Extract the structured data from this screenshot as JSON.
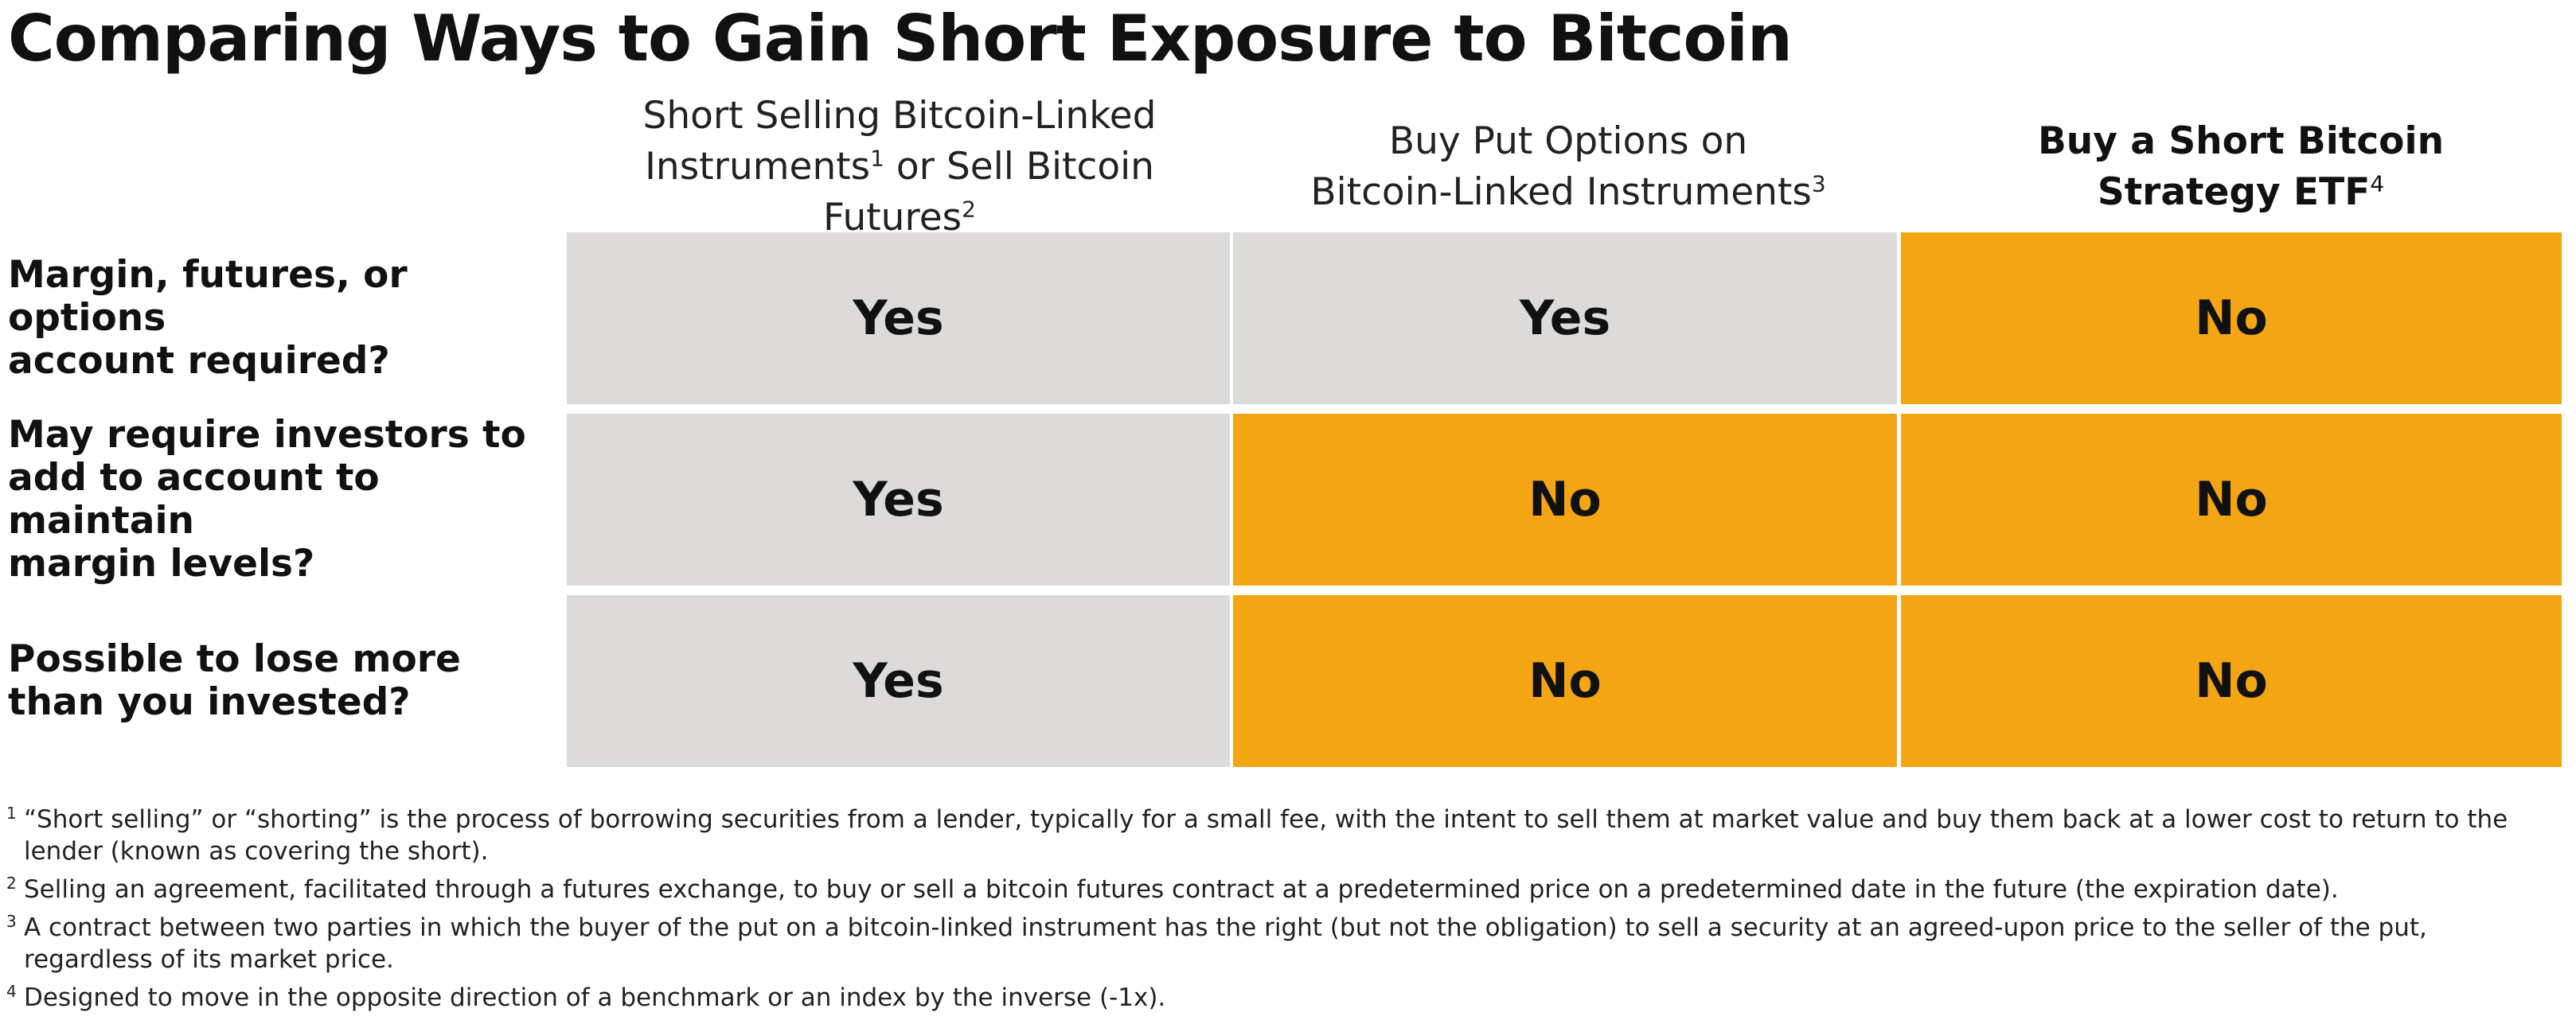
{
  "title": "Comparing Ways to Gain Short Exposure to Bitcoin",
  "columns": [
    {
      "line1": "Short Selling Bitcoin-Linked",
      "line2a": "Instruments",
      "sup_a": "1",
      "line2b": " or Sell Bitcoin Futures",
      "sup_b": "2"
    },
    {
      "line1": "Buy Put Options on",
      "line2a": "Bitcoin-Linked Instruments",
      "sup_a": "3"
    },
    {
      "line1": "Buy a Short Bitcoin",
      "line2a": "Strategy ETF",
      "sup_a": "4"
    }
  ],
  "rows": [
    {
      "label": "Margin, futures, or options\naccount required?",
      "values": [
        "Yes",
        "Yes",
        "No"
      ]
    },
    {
      "label": "May require investors to\nadd to account to maintain\nmargin levels?",
      "values": [
        "Yes",
        "No",
        "No"
      ]
    },
    {
      "label": "Possible to lose more\nthan you invested?",
      "values": [
        "Yes",
        "No",
        "No"
      ]
    }
  ],
  "colors": {
    "yes_cell": "#dddbda",
    "no_cell": "#f3a514"
  },
  "footnotes": [
    {
      "num": "1",
      "text": "“Short selling” or “shorting” is the process of borrowing securities from a lender, typically for a small fee, with the intent to sell them at market value and buy them back at a lower cost to return to the lender (known as covering the short)."
    },
    {
      "num": "2",
      "text": "Selling an agreement, facilitated through a futures exchange, to buy or sell a bitcoin futures contract at a predetermined price on a predetermined date in the future (the expiration date)."
    },
    {
      "num": "3",
      "text": "A contract between two parties in which the buyer of the put on a bitcoin-linked instrument has the right (but not the obligation) to sell a security at an agreed-upon price to the seller of the put, regardless of its market price."
    },
    {
      "num": "4",
      "text": "Designed to move in the opposite direction of a benchmark or an index by the inverse (-1x)."
    }
  ]
}
